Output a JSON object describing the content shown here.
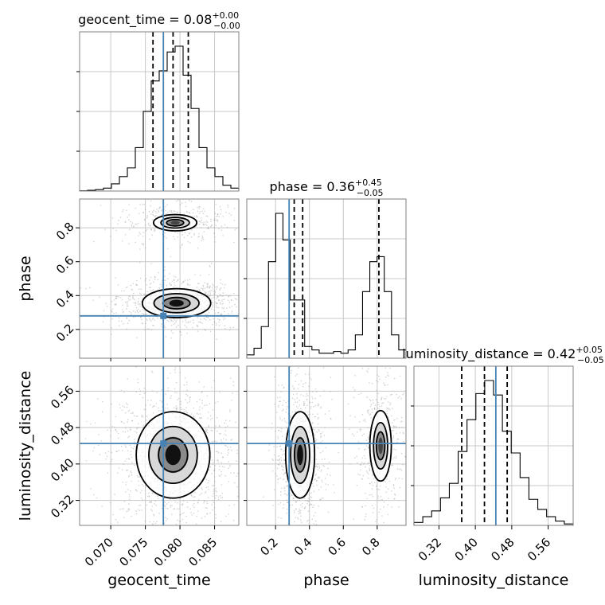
{
  "chart_data": {
    "type": "corner",
    "parameters": [
      "geocent_time",
      "phase",
      "luminosity_distance"
    ],
    "titles": [
      {
        "name": "geocent_time",
        "value": "0.08",
        "plus": "+0.00",
        "minus": "−0.00"
      },
      {
        "name": "phase",
        "value": "0.36",
        "plus": "+0.45",
        "minus": "−0.05"
      },
      {
        "name": "luminosity_distance",
        "value": "0.42",
        "plus": "+0.05",
        "minus": "−0.05"
      }
    ],
    "axis_labels": {
      "x": [
        "geocent_time",
        "phase",
        "luminosity_distance"
      ],
      "y": [
        "phase",
        "luminosity_distance"
      ]
    },
    "ranges": {
      "geocent_time": [
        0.0655,
        0.0885
      ],
      "phase": [
        0.03,
        0.97
      ],
      "luminosity_distance": [
        0.265,
        0.615
      ]
    },
    "ticks": {
      "geocent_time": [
        "0.070",
        "0.075",
        "0.080",
        "0.085"
      ],
      "phase": [
        "0.2",
        "0.4",
        "0.6",
        "0.8"
      ],
      "luminosity_distance": [
        "0.32",
        "0.40",
        "0.48",
        "0.56"
      ]
    },
    "truths": {
      "geocent_time": 0.0776,
      "phase": 0.28,
      "luminosity_distance": 0.445
    },
    "quantiles": {
      "geocent_time": [
        0.0761,
        0.079,
        0.0812
      ],
      "phase": [
        0.31,
        0.36,
        0.81
      ],
      "luminosity_distance": [
        0.37,
        0.42,
        0.47
      ]
    },
    "histograms": {
      "geocent_time": [
        0.002,
        0.005,
        0.01,
        0.02,
        0.05,
        0.1,
        0.16,
        0.3,
        0.55,
        0.76,
        0.83,
        0.96,
        1.0,
        0.8,
        0.57,
        0.3,
        0.16,
        0.1,
        0.04,
        0.02
      ],
      "phase": [
        0.02,
        0.06,
        0.19,
        0.58,
        0.87,
        0.71,
        0.35,
        0.35,
        0.07,
        0.05,
        0.03,
        0.03,
        0.04,
        0.03,
        0.05,
        0.14,
        0.4,
        0.58,
        0.61,
        0.4,
        0.14,
        0.05
      ],
      "luminosity_distance": [
        0.02,
        0.06,
        0.1,
        0.19,
        0.29,
        0.51,
        0.73,
        0.91,
        1.0,
        0.9,
        0.65,
        0.5,
        0.33,
        0.18,
        0.11,
        0.06,
        0.03,
        0.01
      ]
    },
    "modes_2d": {
      "phase_vs_geocent_time": [
        {
          "x": 0.0793,
          "y": 0.83,
          "sx": 0.0026,
          "sy": 0.04,
          "w": 0.4
        },
        {
          "x": 0.0795,
          "y": 0.355,
          "sx": 0.0026,
          "sy": 0.045,
          "w": 1.0
        }
      ],
      "luminosity_distance_vs_geocent_time": [
        {
          "x": 0.079,
          "y": 0.42,
          "sx": 0.0028,
          "sy": 0.05,
          "w": 1.0
        }
      ],
      "luminosity_distance_vs_phase": [
        {
          "x": 0.345,
          "y": 0.42,
          "sx": 0.045,
          "sy": 0.05,
          "w": 1.0
        },
        {
          "x": 0.82,
          "y": 0.44,
          "sx": 0.045,
          "sy": 0.055,
          "w": 0.55
        }
      ]
    },
    "grid": true,
    "colors": {
      "truth": "#4682b4",
      "contour": "#000000",
      "points": "#9e9e9e",
      "grid": "#c8c8c8"
    }
  }
}
